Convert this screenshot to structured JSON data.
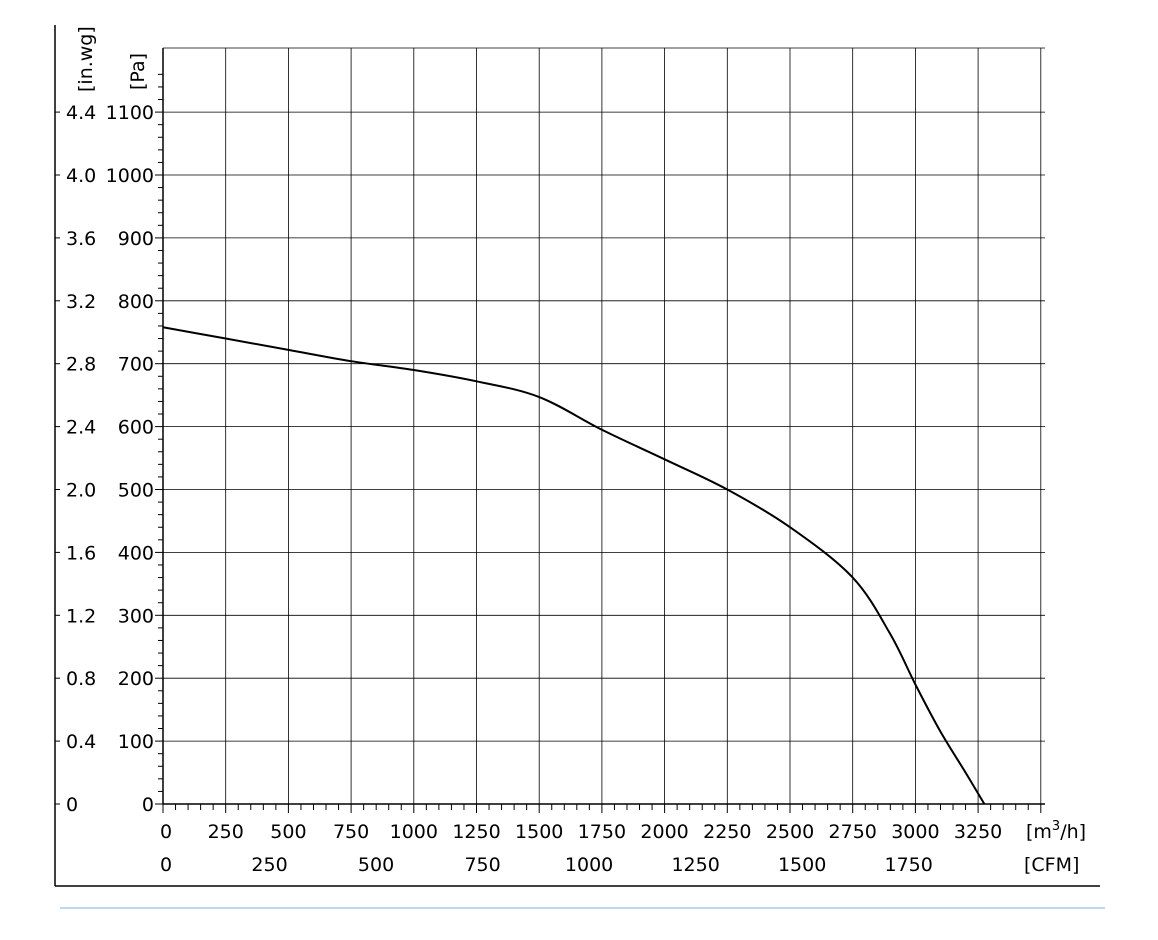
{
  "chart_data": {
    "type": "line",
    "title": "",
    "x_axis_primary": {
      "unit": "[m³/h]",
      "ticks": [
        "0",
        "250",
        "500",
        "750",
        "1000",
        "1250",
        "1500",
        "1750",
        "2000",
        "2250",
        "2500",
        "2750",
        "3000",
        "3250"
      ],
      "range": [
        0,
        3500
      ]
    },
    "x_axis_secondary": {
      "unit": "[CFM]",
      "ticks": [
        "0",
        "250",
        "500",
        "750",
        "1000",
        "1250",
        "1500",
        "1750"
      ]
    },
    "y_axis_primary": {
      "unit": "[Pa]",
      "ticks": [
        "0",
        "100",
        "200",
        "300",
        "400",
        "500",
        "600",
        "700",
        "800",
        "900",
        "1000",
        "1100"
      ],
      "range": [
        0,
        1100
      ]
    },
    "y_axis_secondary": {
      "unit": "[in.wg]",
      "ticks": [
        "0",
        "0.4",
        "0.8",
        "1.2",
        "1.6",
        "2.0",
        "2.4",
        "2.8",
        "3.2",
        "3.6",
        "4.0",
        "4.4"
      ]
    },
    "grid": true,
    "series": [
      {
        "x": [
          0,
          250,
          500,
          750,
          1000,
          1250,
          1500,
          1750,
          2000,
          2250,
          2500,
          2750,
          2900,
          3000,
          3100,
          3200,
          3275
        ],
        "y": [
          758,
          740,
          722,
          704,
          690,
          672,
          647,
          595,
          548,
          500,
          440,
          360,
          270,
          190,
          115,
          50,
          0
        ]
      }
    ]
  }
}
